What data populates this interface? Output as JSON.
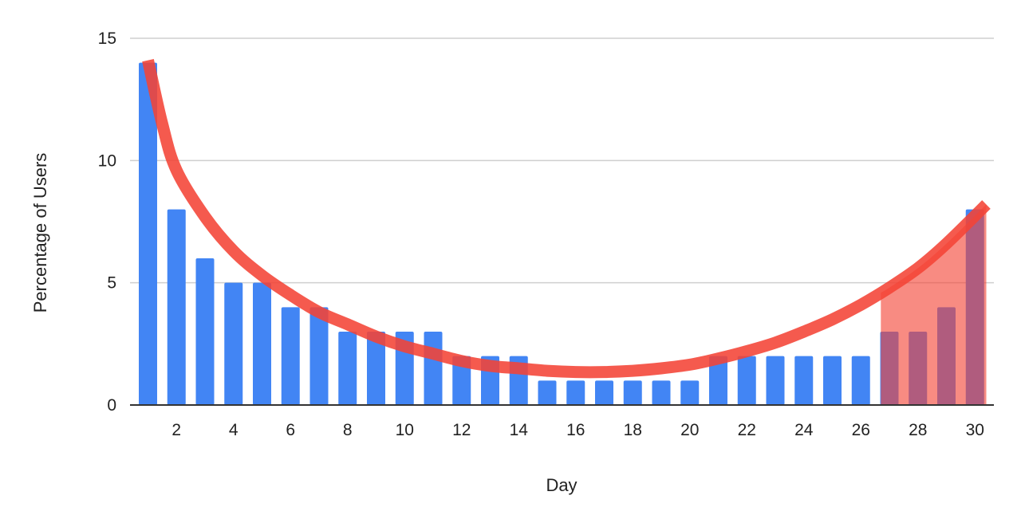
{
  "chart_data": {
    "type": "bar",
    "title": "",
    "xlabel": "Day",
    "ylabel": "Percentage of Users",
    "x": [
      1,
      2,
      3,
      4,
      5,
      6,
      7,
      8,
      9,
      10,
      11,
      12,
      13,
      14,
      15,
      16,
      17,
      18,
      19,
      20,
      21,
      22,
      23,
      24,
      25,
      26,
      27,
      28,
      29,
      30
    ],
    "values": [
      14,
      8,
      6,
      5,
      5,
      4,
      4,
      3,
      3,
      3,
      3,
      2,
      2,
      2,
      1,
      1,
      1,
      1,
      1,
      1,
      2,
      2,
      2,
      2,
      2,
      2,
      3,
      3,
      4,
      8
    ],
    "x_tick_labels": [
      "2",
      "4",
      "6",
      "8",
      "10",
      "12",
      "14",
      "16",
      "18",
      "20",
      "22",
      "24",
      "26",
      "28",
      "30"
    ],
    "y_tick_labels": [
      "0",
      "5",
      "10",
      "15"
    ],
    "ylim": [
      0,
      15
    ],
    "grid": true,
    "bar_color": "#4285f4",
    "highlight_region": {
      "from_day": 26.7,
      "to_day": 30.5,
      "color": "#f44336"
    },
    "trend_curve": {
      "color": "#f44336",
      "points": [
        [
          1,
          14.1
        ],
        [
          1.5,
          11.5
        ],
        [
          2,
          9.6
        ],
        [
          3,
          7.7
        ],
        [
          4,
          6.3
        ],
        [
          5,
          5.3
        ],
        [
          6,
          4.5
        ],
        [
          7,
          3.8
        ],
        [
          8,
          3.3
        ],
        [
          9,
          2.8
        ],
        [
          10,
          2.4
        ],
        [
          11,
          2.1
        ],
        [
          12,
          1.8
        ],
        [
          13,
          1.6
        ],
        [
          14,
          1.5
        ],
        [
          15,
          1.4
        ],
        [
          16,
          1.35
        ],
        [
          17,
          1.35
        ],
        [
          18,
          1.4
        ],
        [
          19,
          1.5
        ],
        [
          20,
          1.65
        ],
        [
          21,
          1.9
        ],
        [
          22,
          2.2
        ],
        [
          23,
          2.55
        ],
        [
          24,
          3.0
        ],
        [
          25,
          3.5
        ],
        [
          26,
          4.1
        ],
        [
          27,
          4.8
        ],
        [
          28,
          5.6
        ],
        [
          29,
          6.6
        ],
        [
          30.4,
          8.2
        ]
      ]
    }
  }
}
